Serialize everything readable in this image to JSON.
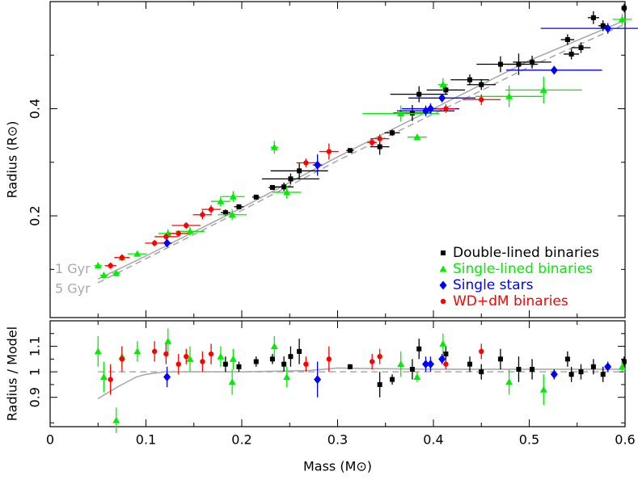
{
  "chart_data": [
    {
      "type": "scatter",
      "ylabel": "Radius (R⊙)",
      "xlim": [
        0,
        0.6
      ],
      "ylim": [
        0.01,
        0.6
      ],
      "xticks": [
        0,
        0.1,
        0.2,
        0.3,
        0.4,
        0.5,
        0.6
      ],
      "xminor": [
        0.05,
        0.15,
        0.25,
        0.35,
        0.45,
        0.55
      ],
      "yticks": [
        0.2,
        0.4
      ],
      "yminor": [
        0.1,
        0.3,
        0.5
      ],
      "legend": "lower right",
      "models": [
        {
          "name": "1 Gyr",
          "color": "#aaaaaa",
          "dash": false,
          "x": [
            0.05,
            0.1,
            0.2,
            0.3,
            0.4,
            0.5,
            0.6
          ],
          "y": [
            0.082,
            0.125,
            0.215,
            0.31,
            0.4,
            0.49,
            0.565
          ]
        },
        {
          "name": "5 Gyr",
          "color": "#aaaaaa",
          "dash": true,
          "x": [
            0.05,
            0.1,
            0.2,
            0.3,
            0.4,
            0.5,
            0.6
          ],
          "y": [
            0.075,
            0.12,
            0.21,
            0.303,
            0.39,
            0.478,
            0.558
          ]
        }
      ],
      "series": [
        {
          "name": "Double-lined binaries",
          "color": "#000000",
          "marker": "square",
          "x": [
            0.599,
            0.577,
            0.567,
            0.554,
            0.544,
            0.54,
            0.503,
            0.489,
            0.47,
            0.45,
            0.438,
            0.413,
            0.385,
            0.378,
            0.357,
            0.344,
            0.313,
            0.26,
            0.251,
            0.244,
            0.232,
            0.215,
            0.197,
            0.183
          ],
          "y": [
            0.588,
            0.555,
            0.57,
            0.514,
            0.502,
            0.529,
            0.487,
            0.483,
            0.483,
            0.445,
            0.454,
            0.435,
            0.427,
            0.392,
            0.355,
            0.329,
            0.322,
            0.284,
            0.269,
            0.254,
            0.253,
            0.235,
            0.217,
            0.206
          ],
          "xerr": [
            0.003,
            0.005,
            0.006,
            0.01,
            0.008,
            0.007,
            0.02,
            0.02,
            0.025,
            0.015,
            0.02,
            0.02,
            0.03,
            0.02,
            0.008,
            0.01,
            0.004,
            0.03,
            0.03,
            0.01,
            0.004,
            0.004,
            0.005,
            0.005
          ],
          "yerr": [
            0.008,
            0.01,
            0.012,
            0.01,
            0.01,
            0.01,
            0.012,
            0.02,
            0.015,
            0.01,
            0.01,
            0.008,
            0.015,
            0.015,
            0.006,
            0.015,
            0.004,
            0.015,
            0.01,
            0.008,
            0.004,
            0.004,
            0.004,
            0.006
          ]
        },
        {
          "name": "Single-lined binaries",
          "color": "#00ee00",
          "marker": "triangle",
          "x": [
            0.597,
            0.515,
            0.479,
            0.41,
            0.383,
            0.366,
            0.247,
            0.234,
            0.191,
            0.19,
            0.178,
            0.146,
            0.123,
            0.091,
            0.075,
            0.069,
            0.056,
            0.05
          ],
          "y": [
            0.567,
            0.435,
            0.423,
            0.445,
            0.347,
            0.391,
            0.244,
            0.328,
            0.236,
            0.202,
            0.227,
            0.171,
            0.167,
            0.129,
            0.122,
            0.093,
            0.089,
            0.107
          ],
          "xerr": [
            0.01,
            0.04,
            0.035,
            0.005,
            0.01,
            0.04,
            0.015,
            0.004,
            0.012,
            0.015,
            0.01,
            0.015,
            0.01,
            0.01,
            0.008,
            0.004,
            0.004,
            0.004
          ],
          "yerr": [
            0.01,
            0.025,
            0.02,
            0.012,
            0.004,
            0.015,
            0.012,
            0.012,
            0.01,
            0.01,
            0.01,
            0.008,
            0.008,
            0.005,
            0.005,
            0.006,
            0.006,
            0.006
          ]
        },
        {
          "name": "Single stars",
          "color": "#0000ff",
          "marker": "diamond",
          "x": [
            0.582,
            0.526,
            0.409,
            0.397,
            0.392,
            0.279,
            0.122
          ],
          "y": [
            0.55,
            0.472,
            0.42,
            0.4,
            0.396,
            0.295,
            0.149
          ],
          "xerr": [
            0.07,
            0.05,
            0.035,
            0.03,
            0.03,
            0.005,
            0.005
          ],
          "yerr": [
            0.01,
            0.008,
            0.008,
            0.01,
            0.01,
            0.02,
            0.006
          ]
        },
        {
          "name": "WD+dM binaries",
          "color": "#ff0000",
          "marker": "circle",
          "x": [
            0.45,
            0.413,
            0.344,
            0.336,
            0.291,
            0.267,
            0.168,
            0.159,
            0.142,
            0.134,
            0.121,
            0.109,
            0.075,
            0.063
          ],
          "y": [
            0.417,
            0.4,
            0.344,
            0.337,
            0.32,
            0.299,
            0.212,
            0.202,
            0.182,
            0.167,
            0.161,
            0.149,
            0.122,
            0.107
          ],
          "xerr": [
            0.02,
            0.01,
            0.01,
            0.005,
            0.01,
            0.01,
            0.01,
            0.01,
            0.015,
            0.01,
            0.012,
            0.01,
            0.008,
            0.006
          ],
          "yerr": [
            0.01,
            0.008,
            0.008,
            0.008,
            0.015,
            0.008,
            0.008,
            0.008,
            0.006,
            0.006,
            0.006,
            0.006,
            0.006,
            0.006
          ]
        }
      ]
    },
    {
      "type": "scatter",
      "xlabel": "Mass (M⊙)",
      "ylabel": "Radius / Model",
      "xlim": [
        0,
        0.6
      ],
      "ylim": [
        0.785,
        1.2
      ],
      "xticks": [
        0,
        0.1,
        0.2,
        0.3,
        0.4,
        0.5,
        0.6
      ],
      "xminor": [
        0.05,
        0.15,
        0.25,
        0.35,
        0.45,
        0.55
      ],
      "yticks": [
        0.9,
        1,
        1.1
      ],
      "yminor": [
        0.8,
        0.95,
        1.05,
        1.15
      ],
      "models": [
        {
          "color": "#aaaaaa",
          "dash": false,
          "x": [
            0.05,
            0.07,
            0.09,
            0.1,
            0.12,
            0.2,
            0.27,
            0.3,
            0.33,
            0.4,
            0.5,
            0.6
          ],
          "y": [
            0.895,
            0.94,
            0.98,
            0.99,
            1.0,
            1.0,
            1.005,
            1.015,
            1.013,
            1.01,
            1.01,
            1.01
          ]
        },
        {
          "color": "#aaaaaa",
          "dash": true,
          "x": [
            0.05,
            0.6
          ],
          "y": [
            1.0,
            1.0
          ]
        }
      ],
      "series": [
        {
          "values": [
            1.04,
            0.99,
            1.02,
            1.0,
            0.99,
            1.05,
            1.01,
            1.01,
            1.05,
            1.0,
            1.03,
            1.07,
            1.09,
            1.01,
            0.97,
            0.95,
            1.02,
            1.08,
            1.06,
            1.03,
            1.05,
            1.04,
            1.02,
            1.03
          ],
          "yerr": [
            0.02,
            0.03,
            0.03,
            0.03,
            0.03,
            0.03,
            0.04,
            0.05,
            0.04,
            0.03,
            0.03,
            0.03,
            0.04,
            0.04,
            0.02,
            0.05,
            0.01,
            0.05,
            0.04,
            0.03,
            0.02,
            0.02,
            0.02,
            0.03
          ]
        },
        {
          "values": [
            1.02,
            0.93,
            0.96,
            1.11,
            0.98,
            1.03,
            0.98,
            1.1,
            1.05,
            0.96,
            1.06,
            1.05,
            1.12,
            1.08,
            1.06,
            0.81,
            0.98,
            1.08
          ],
          "yerr": [
            0.02,
            0.06,
            0.05,
            0.04,
            0.02,
            0.05,
            0.04,
            0.04,
            0.04,
            0.05,
            0.04,
            0.05,
            0.05,
            0.04,
            0.04,
            0.05,
            0.06,
            0.06
          ]
        },
        {
          "values": [
            1.02,
            0.99,
            1.05,
            1.03,
            1.03,
            0.97,
            0.98
          ],
          "yerr": [
            0.02,
            0.02,
            0.02,
            0.03,
            0.03,
            0.07,
            0.04
          ]
        },
        {
          "values": [
            1.08,
            1.03,
            1.06,
            1.04,
            1.05,
            1.03,
            1.07,
            1.04,
            1.06,
            1.03,
            1.07,
            1.08,
            1.05,
            0.97
          ],
          "yerr": [
            0.03,
            0.02,
            0.03,
            0.03,
            0.05,
            0.03,
            0.04,
            0.04,
            0.03,
            0.04,
            0.04,
            0.04,
            0.05,
            0.06
          ]
        }
      ]
    }
  ]
}
